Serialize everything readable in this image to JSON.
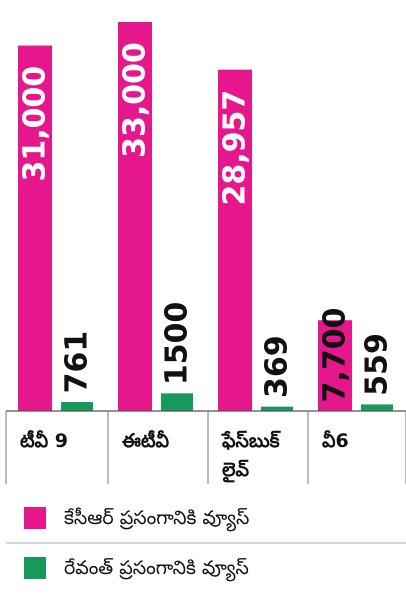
{
  "chart_data": {
    "type": "bar",
    "categories": [
      "టీవీ 9",
      "ఈటీవీ",
      "ఫేస్‌బుక్ లైవ్",
      "వీ6"
    ],
    "category_lines": [
      [
        "టీవీ 9"
      ],
      [
        "ఈటీవీ"
      ],
      [
        "ఫేస్‌బుక్",
        "లైవ్"
      ],
      [
        "వీ6"
      ]
    ],
    "series": [
      {
        "name": "కేసీఆర్ ప్రసంగానికి వ్యూస్",
        "color": "#e6168c",
        "values": [
          31000,
          33000,
          28957,
          7700
        ],
        "labels": [
          "31,000",
          "33,000",
          "28,957",
          "7,700"
        ]
      },
      {
        "name": "రేవంత్ ప్రసంగానికి వ్యూస్",
        "color": "#16995a",
        "values": [
          761,
          1500,
          369,
          559
        ],
        "labels": [
          "761",
          "1500",
          "369",
          "559"
        ]
      }
    ],
    "title": "",
    "xlabel": "",
    "ylabel": ""
  }
}
